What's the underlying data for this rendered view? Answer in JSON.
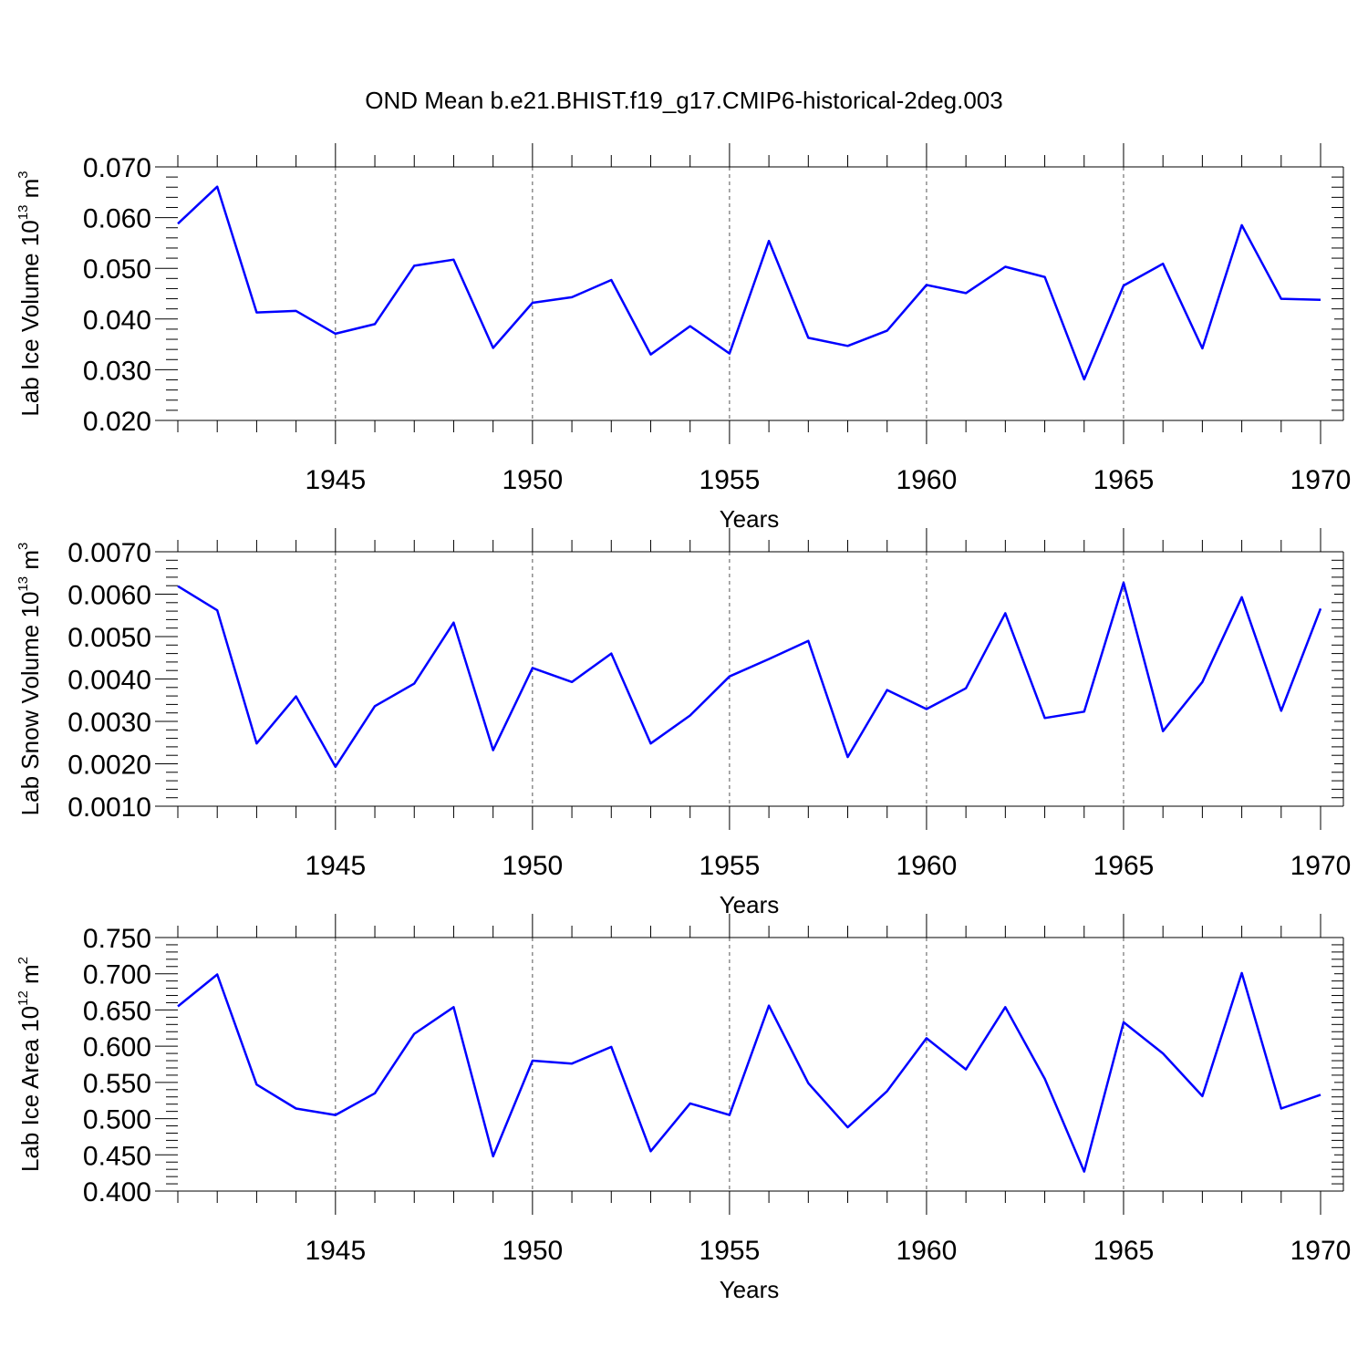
{
  "figure_title": "OND Mean b.e21.BHIST.f19_g17.CMIP6-historical-2deg.003",
  "colors": {
    "line": "#0000ff",
    "axis": "#000000",
    "grid": "#555555"
  },
  "chart_data": [
    {
      "type": "line",
      "xlabel": "Years",
      "ylabel_main": "Lab Ice Volume 10",
      "ylabel_exp": "13",
      "ylabel_unit": " m",
      "ylabel_unit_exp": "3",
      "xlim": [
        1941,
        1970
      ],
      "ylim": [
        0.02,
        0.07
      ],
      "x_ticks": [
        1945,
        1950,
        1955,
        1960,
        1965,
        1970
      ],
      "x_tick_labels": [
        "1945",
        "1950",
        "1955",
        "1960",
        "1965",
        "1970"
      ],
      "y_ticks": [
        0.02,
        0.03,
        0.04,
        0.05,
        0.06,
        0.07
      ],
      "y_tick_labels": [
        "0.020",
        "0.030",
        "0.040",
        "0.050",
        "0.060",
        "0.070"
      ],
      "x_gridlines": [
        1945,
        1950,
        1955,
        1960,
        1965
      ],
      "x": [
        1941,
        1942,
        1943,
        1944,
        1945,
        1946,
        1947,
        1948,
        1949,
        1950,
        1951,
        1952,
        1953,
        1954,
        1955,
        1956,
        1957,
        1958,
        1959,
        1960,
        1961,
        1962,
        1963,
        1964,
        1965,
        1966,
        1967,
        1968,
        1969,
        1970
      ],
      "values": [
        0.0588,
        0.0661,
        0.0413,
        0.0416,
        0.0371,
        0.039,
        0.0505,
        0.0517,
        0.0343,
        0.0432,
        0.0443,
        0.0477,
        0.033,
        0.0386,
        0.0332,
        0.0554,
        0.0363,
        0.0347,
        0.0377,
        0.0467,
        0.0451,
        0.0503,
        0.0483,
        0.0281,
        0.0466,
        0.0509,
        0.0342,
        0.0585,
        0.044,
        0.0438
      ]
    },
    {
      "type": "line",
      "xlabel": "Years",
      "ylabel_main": "Lab Snow Volume 10",
      "ylabel_exp": "13",
      "ylabel_unit": " m",
      "ylabel_unit_exp": "3",
      "xlim": [
        1941,
        1970
      ],
      "ylim": [
        0.001,
        0.007
      ],
      "x_ticks": [
        1945,
        1950,
        1955,
        1960,
        1965,
        1970
      ],
      "x_tick_labels": [
        "1945",
        "1950",
        "1955",
        "1960",
        "1965",
        "1970"
      ],
      "y_ticks": [
        0.001,
        0.002,
        0.003,
        0.004,
        0.005,
        0.006,
        0.007
      ],
      "y_tick_labels": [
        "0.0010",
        "0.0020",
        "0.0030",
        "0.0040",
        "0.0050",
        "0.0060",
        "0.0070"
      ],
      "x_gridlines": [
        1945,
        1950,
        1955,
        1960,
        1965
      ],
      "x": [
        1941,
        1942,
        1943,
        1944,
        1945,
        1946,
        1947,
        1948,
        1949,
        1950,
        1951,
        1952,
        1953,
        1954,
        1955,
        1956,
        1957,
        1958,
        1959,
        1960,
        1961,
        1962,
        1963,
        1964,
        1965,
        1966,
        1967,
        1968,
        1969,
        1970
      ],
      "values": [
        0.00619,
        0.00562,
        0.00248,
        0.00359,
        0.00193,
        0.00336,
        0.00389,
        0.00533,
        0.00232,
        0.00426,
        0.00393,
        0.0046,
        0.00248,
        0.00314,
        0.00406,
        0.00447,
        0.0049,
        0.00216,
        0.00374,
        0.00329,
        0.00378,
        0.00555,
        0.00308,
        0.00323,
        0.00627,
        0.00277,
        0.00393,
        0.00593,
        0.00325,
        0.00566
      ]
    },
    {
      "type": "line",
      "xlabel": "Years",
      "ylabel_main": "Lab Ice Area 10",
      "ylabel_exp": "12",
      "ylabel_unit": " m",
      "ylabel_unit_exp": "2",
      "xlim": [
        1941,
        1970
      ],
      "ylim": [
        0.4,
        0.75
      ],
      "x_ticks": [
        1945,
        1950,
        1955,
        1960,
        1965,
        1970
      ],
      "x_tick_labels": [
        "1945",
        "1950",
        "1955",
        "1960",
        "1965",
        "1970"
      ],
      "y_ticks": [
        0.4,
        0.45,
        0.5,
        0.55,
        0.6,
        0.65,
        0.7,
        0.75
      ],
      "y_tick_labels": [
        "0.400",
        "0.450",
        "0.500",
        "0.550",
        "0.600",
        "0.650",
        "0.700",
        "0.750"
      ],
      "x_gridlines": [
        1945,
        1950,
        1955,
        1960,
        1965
      ],
      "x": [
        1941,
        1942,
        1943,
        1944,
        1945,
        1946,
        1947,
        1948,
        1949,
        1950,
        1951,
        1952,
        1953,
        1954,
        1955,
        1956,
        1957,
        1958,
        1959,
        1960,
        1961,
        1962,
        1963,
        1964,
        1965,
        1966,
        1967,
        1968,
        1969,
        1970
      ],
      "values": [
        0.655,
        0.699,
        0.547,
        0.514,
        0.505,
        0.535,
        0.617,
        0.654,
        0.448,
        0.58,
        0.576,
        0.599,
        0.455,
        0.521,
        0.505,
        0.656,
        0.549,
        0.488,
        0.538,
        0.611,
        0.568,
        0.654,
        0.555,
        0.427,
        0.633,
        0.59,
        0.531,
        0.701,
        0.514,
        0.533
      ]
    }
  ]
}
